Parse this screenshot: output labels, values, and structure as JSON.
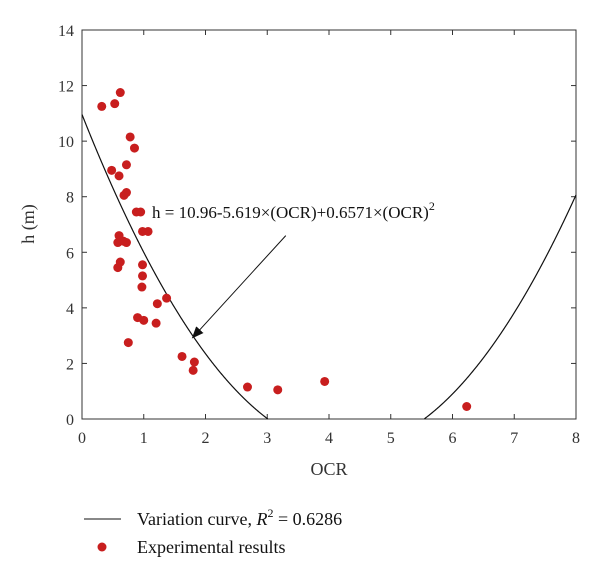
{
  "chart_data": {
    "type": "scatter",
    "title": "",
    "xlabel": "OCR",
    "ylabel": "h (m)",
    "xlim": [
      0,
      8
    ],
    "ylim": [
      0,
      14
    ],
    "x_ticks": [
      0,
      1,
      2,
      3,
      4,
      5,
      6,
      7,
      8
    ],
    "y_ticks": [
      0,
      2,
      4,
      6,
      8,
      10,
      12,
      14
    ],
    "grid": false,
    "fit_curve": {
      "name_prefix": "Variation curve, ",
      "r2_label": "R",
      "r2_sup": "2",
      "r2_value": " = 0.6286",
      "coefficients": [
        10.96,
        -5.619,
        0.6571
      ],
      "color": "#111111"
    },
    "annotation": {
      "text_main": "h = 10.96-5.619×(OCR)+0.6571×(OCR)",
      "text_sup": "2",
      "arrow_from": [
        3.3,
        6.6
      ],
      "arrow_to": [
        1.8,
        2.95
      ]
    },
    "series": [
      {
        "name": "Experimental results",
        "color": "#c81e1e",
        "points": [
          [
            0.32,
            11.25
          ],
          [
            0.53,
            11.35
          ],
          [
            0.62,
            11.75
          ],
          [
            0.78,
            10.15
          ],
          [
            0.85,
            9.75
          ],
          [
            0.72,
            9.15
          ],
          [
            0.48,
            8.95
          ],
          [
            0.6,
            8.75
          ],
          [
            0.68,
            8.05
          ],
          [
            0.72,
            8.15
          ],
          [
            0.88,
            7.45
          ],
          [
            0.95,
            7.45
          ],
          [
            0.98,
            6.75
          ],
          [
            1.07,
            6.75
          ],
          [
            0.6,
            6.6
          ],
          [
            0.58,
            6.35
          ],
          [
            0.67,
            6.4
          ],
          [
            0.72,
            6.35
          ],
          [
            0.98,
            5.55
          ],
          [
            0.98,
            5.15
          ],
          [
            0.62,
            5.65
          ],
          [
            0.58,
            5.45
          ],
          [
            0.97,
            4.75
          ],
          [
            1.37,
            4.35
          ],
          [
            1.22,
            4.15
          ],
          [
            0.9,
            3.65
          ],
          [
            1.0,
            3.55
          ],
          [
            1.2,
            3.45
          ],
          [
            0.75,
            2.75
          ],
          [
            1.62,
            2.25
          ],
          [
            1.82,
            2.05
          ],
          [
            1.8,
            1.75
          ],
          [
            2.68,
            1.15
          ],
          [
            3.17,
            1.05
          ],
          [
            3.93,
            1.35
          ],
          [
            6.23,
            0.45
          ]
        ]
      }
    ],
    "legend": {
      "placement": "below",
      "line_label_prefix": "Variation curve, ",
      "points_label": "Experimental results"
    }
  }
}
